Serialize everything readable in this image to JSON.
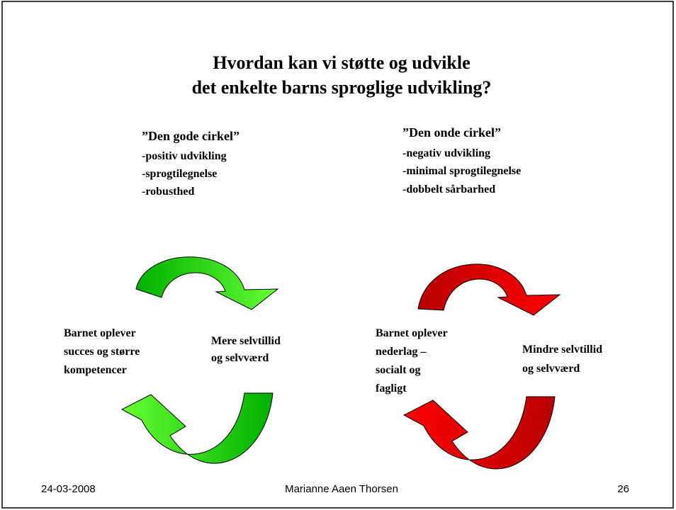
{
  "title": [
    "Hvordan kan vi støtte og udvikle",
    "det enkelte barns sproglige udvikling?"
  ],
  "left": {
    "heading": "”Den gode cirkel”",
    "items": [
      "-positiv udvikling",
      "-sprogtilegnelse",
      "-robusthed"
    ],
    "label_a": [
      "Barnet oplever",
      "succes og større",
      "kompetencer"
    ],
    "label_b": [
      "Mere selvtillid",
      "og selvværd"
    ]
  },
  "right": {
    "heading": "”Den onde cirkel”",
    "items": [
      "-negativ udvikling",
      "-minimal sprogtilegnelse",
      "-dobbelt sårbarhed"
    ],
    "label_a": [
      "Barnet oplever",
      "nederlag –",
      "socialt og",
      "fagligt"
    ],
    "label_b": [
      "Mindre selvtillid",
      "og selvværd"
    ]
  },
  "footer": {
    "date": "24-03-2008",
    "author": "Marianne Aaen Thorsen",
    "page": "26"
  }
}
